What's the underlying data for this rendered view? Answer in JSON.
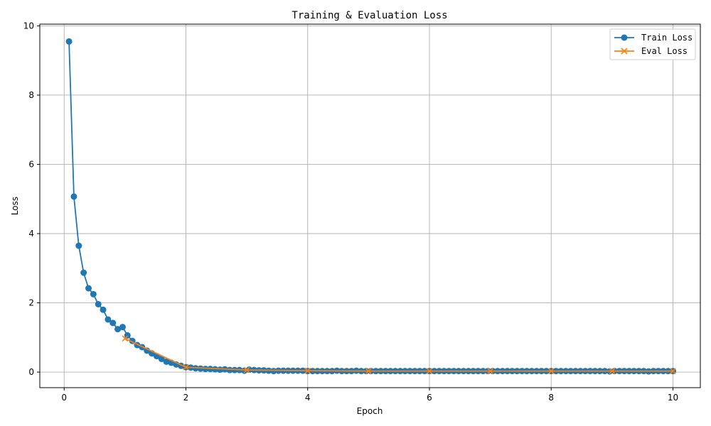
{
  "chart_data": {
    "type": "line",
    "title": "Training & Evaluation Loss",
    "xlabel": "Epoch",
    "ylabel": "Loss",
    "xlim": [
      -0.4,
      10.45
    ],
    "ylim": [
      -0.45,
      10.05
    ],
    "xticks": [
      0,
      2,
      4,
      6,
      8,
      10
    ],
    "yticks": [
      0,
      2,
      4,
      6,
      8,
      10
    ],
    "grid": true,
    "legend_position": "top-right",
    "series": [
      {
        "name": "Train Loss",
        "color": "#1f77b4",
        "marker": "circle",
        "x": [
          0.08,
          0.16,
          0.24,
          0.32,
          0.4,
          0.48,
          0.56,
          0.64,
          0.72,
          0.8,
          0.88,
          0.96,
          1.04,
          1.12,
          1.2,
          1.28,
          1.36,
          1.44,
          1.52,
          1.6,
          1.68,
          1.76,
          1.84,
          1.92,
          2.0,
          2.08,
          2.16,
          2.24,
          2.32,
          2.4,
          2.48,
          2.56,
          2.64,
          2.72,
          2.8,
          2.88,
          2.96,
          3.04,
          3.12,
          3.2,
          3.28,
          3.36,
          3.44,
          3.52,
          3.6,
          3.68,
          3.76,
          3.84,
          3.92,
          4.0,
          4.08,
          4.16,
          4.24,
          4.32,
          4.4,
          4.48,
          4.56,
          4.64,
          4.72,
          4.8,
          4.88,
          4.96,
          5.04,
          5.12,
          5.2,
          5.28,
          5.36,
          5.44,
          5.52,
          5.6,
          5.68,
          5.76,
          5.84,
          5.92,
          6.0,
          6.08,
          6.16,
          6.24,
          6.32,
          6.4,
          6.48,
          6.56,
          6.64,
          6.72,
          6.8,
          6.88,
          6.96,
          7.04,
          7.12,
          7.2,
          7.28,
          7.36,
          7.44,
          7.52,
          7.6,
          7.68,
          7.76,
          7.84,
          7.92,
          8.0,
          8.08,
          8.16,
          8.24,
          8.32,
          8.4,
          8.48,
          8.56,
          8.64,
          8.72,
          8.8,
          8.88,
          8.96,
          9.04,
          9.12,
          9.2,
          9.28,
          9.36,
          9.44,
          9.52,
          9.6,
          9.68,
          9.76,
          9.84,
          9.92,
          10.0
        ],
        "y": [
          9.55,
          5.07,
          3.65,
          2.87,
          2.42,
          2.25,
          1.96,
          1.8,
          1.52,
          1.42,
          1.24,
          1.3,
          1.06,
          0.9,
          0.78,
          0.72,
          0.62,
          0.54,
          0.46,
          0.38,
          0.3,
          0.27,
          0.22,
          0.18,
          0.14,
          0.13,
          0.11,
          0.1,
          0.09,
          0.09,
          0.08,
          0.07,
          0.08,
          0.06,
          0.06,
          0.06,
          0.04,
          0.07,
          0.06,
          0.05,
          0.05,
          0.04,
          0.03,
          0.04,
          0.04,
          0.04,
          0.04,
          0.04,
          0.04,
          0.03,
          0.03,
          0.03,
          0.03,
          0.03,
          0.03,
          0.04,
          0.03,
          0.03,
          0.03,
          0.04,
          0.03,
          0.03,
          0.03,
          0.03,
          0.03,
          0.03,
          0.03,
          0.03,
          0.03,
          0.03,
          0.03,
          0.03,
          0.03,
          0.03,
          0.03,
          0.03,
          0.03,
          0.03,
          0.03,
          0.03,
          0.03,
          0.03,
          0.03,
          0.03,
          0.03,
          0.03,
          0.03,
          0.03,
          0.03,
          0.03,
          0.03,
          0.03,
          0.03,
          0.03,
          0.03,
          0.03,
          0.03,
          0.03,
          0.03,
          0.03,
          0.03,
          0.03,
          0.03,
          0.03,
          0.03,
          0.03,
          0.03,
          0.03,
          0.03,
          0.03,
          0.03,
          0.02,
          0.03,
          0.03,
          0.03,
          0.03,
          0.03,
          0.03,
          0.03,
          0.02,
          0.03,
          0.03,
          0.03,
          0.03,
          0.03
        ]
      },
      {
        "name": "Eval Loss",
        "color": "#ff7f0e",
        "marker": "x",
        "x": [
          1,
          2,
          3,
          4,
          5,
          6,
          7,
          8,
          9,
          10
        ],
        "y": [
          0.97,
          0.14,
          0.06,
          0.04,
          0.03,
          0.03,
          0.03,
          0.03,
          0.03,
          0.03
        ]
      }
    ]
  }
}
